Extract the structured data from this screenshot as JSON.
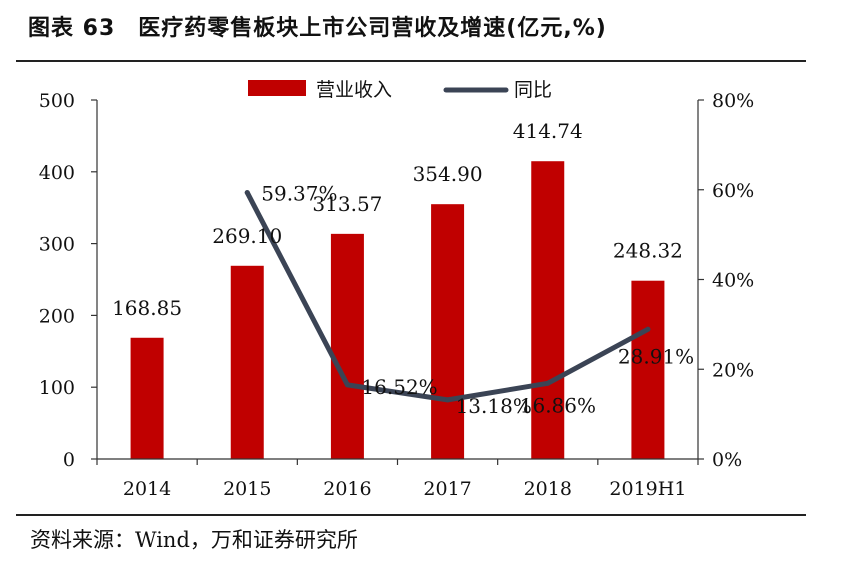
{
  "figure": {
    "title": "图表 63　医疗药零售板块上市公司营收及增速(亿元,%)",
    "source": "资料来源：Wind，万和证券研究所"
  },
  "chart_data": {
    "type": "bar",
    "categories": [
      "2014",
      "2015",
      "2016",
      "2017",
      "2018",
      "2019H1"
    ],
    "series": [
      {
        "name": "营业收入",
        "type": "bar",
        "axis": "left",
        "color": "#c00000",
        "values": [
          168.85,
          269.1,
          313.57,
          354.9,
          414.74,
          248.32
        ],
        "labels": [
          "168.85",
          "269.10",
          "313.57",
          "354.90",
          "414.74",
          "248.32"
        ]
      },
      {
        "name": "同比",
        "type": "line",
        "axis": "right",
        "color": "#3b4455",
        "values": [
          null,
          59.37,
          16.52,
          13.18,
          16.86,
          28.91
        ],
        "labels": [
          "",
          "59.37%",
          "16.52%",
          "13.18%",
          "16.86%",
          "28.91%"
        ]
      }
    ],
    "y_left": {
      "ylim": [
        0,
        500
      ],
      "ticks": [
        "0",
        "100",
        "200",
        "300",
        "400",
        "500"
      ]
    },
    "y_right": {
      "ylim": [
        0,
        80
      ],
      "ticks": [
        "0%",
        "20%",
        "40%",
        "60%",
        "80%"
      ]
    },
    "legend": "top-center",
    "grid": false
  }
}
